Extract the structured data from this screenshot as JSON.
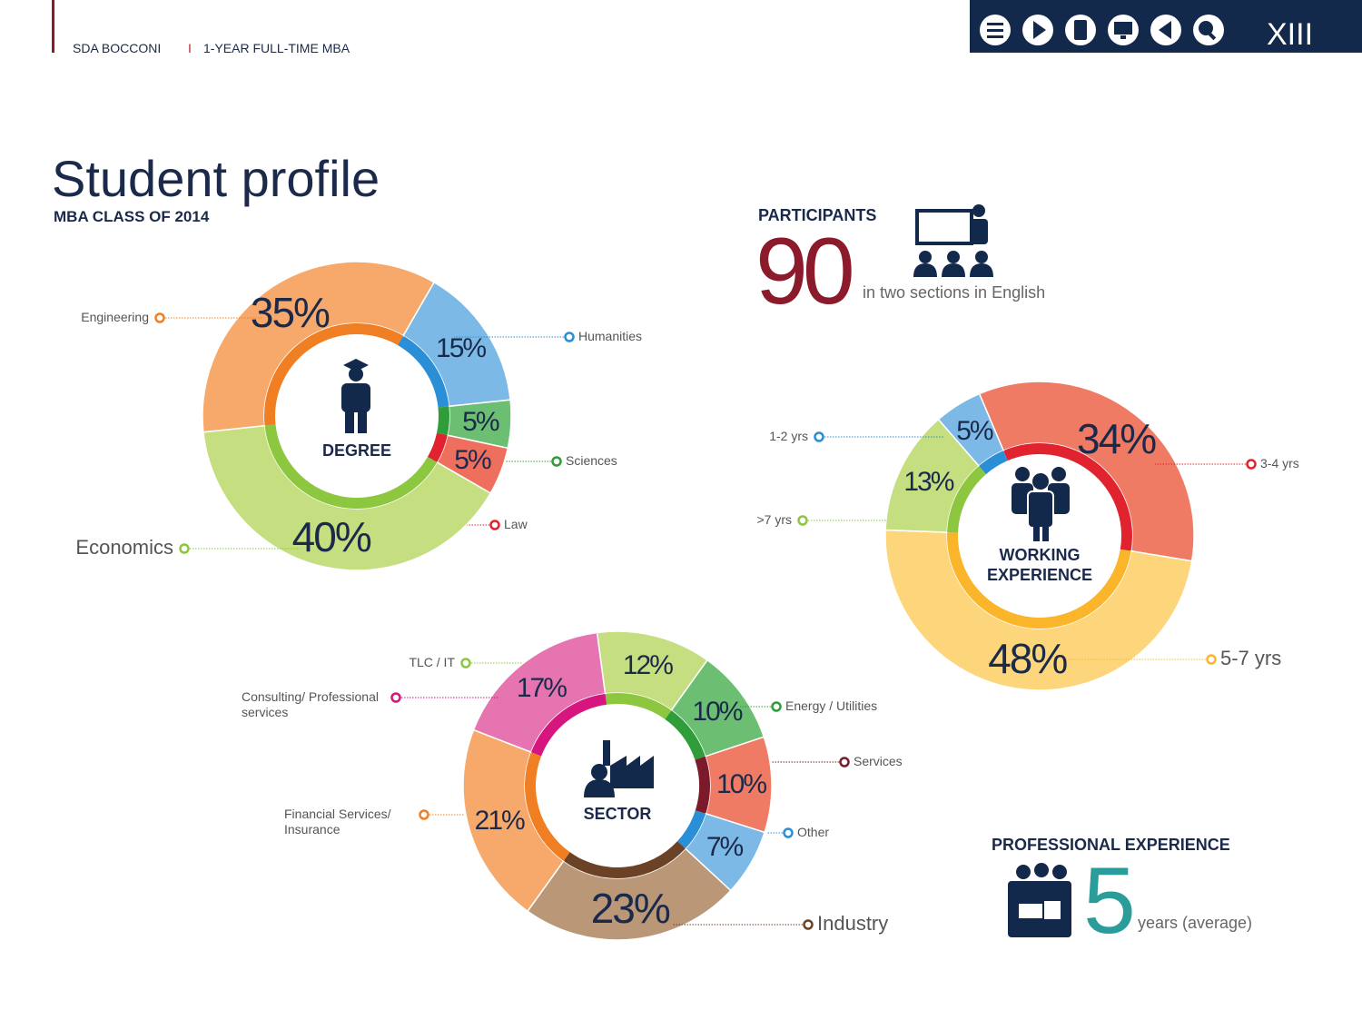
{
  "header": {
    "brand": "SDA BOCCONI",
    "separator": "I",
    "program": "1-YEAR FULL-TIME MBA",
    "page": "XIII"
  },
  "title": "Student profile",
  "subtitle": "MBA CLASS OF 2014",
  "participants": {
    "label": "PARTICIPANTS",
    "number": 90,
    "note": "in two sections in English"
  },
  "professional_experience": {
    "label": "PROFESSIONAL EXPERIENCE",
    "number": 5,
    "note": "years (average)"
  },
  "chart_data": [
    {
      "type": "donut",
      "title": "DEGREE",
      "categories": [
        "Humanities",
        "Sciences",
        "Law",
        "Economics",
        "Engineering"
      ],
      "values": [
        15,
        5,
        5,
        40,
        35
      ],
      "value_labels": [
        "15%",
        "5%",
        "5%",
        "40%",
        "35%"
      ],
      "colors": [
        "#7db9e6",
        "#6cbf72",
        "#ef6f5e",
        "#c4de80",
        "#f6a96b"
      ],
      "inner_colors": [
        "#2a8fd6",
        "#2f9e3a",
        "#e0232f",
        "#8dc63f",
        "#f07f23"
      ]
    },
    {
      "type": "donut",
      "title": "WORKING EXPERIENCE",
      "categories": [
        "3-4 yrs",
        "5-7 yrs",
        ">7 yrs",
        "1-2 yrs"
      ],
      "values": [
        34,
        48,
        13,
        5
      ],
      "value_labels": [
        "34%",
        "48%",
        "13%",
        "5%"
      ],
      "colors": [
        "#ef7b64",
        "#fdd67b",
        "#c4de80",
        "#7db9e6"
      ],
      "inner_colors": [
        "#e0232f",
        "#fbb52b",
        "#8dc63f",
        "#2a8fd6"
      ]
    },
    {
      "type": "donut",
      "title": "SECTOR",
      "categories": [
        "TLC / IT",
        "Energy / Utilities",
        "Services",
        "Other",
        "Industry",
        "Financial Services/ Insurance",
        "Consulting/ Professional services"
      ],
      "values": [
        12,
        10,
        10,
        7,
        23,
        21,
        17
      ],
      "value_labels": [
        "12%",
        "10%",
        "10%",
        "7%",
        "23%",
        "21%",
        "17%"
      ],
      "colors": [
        "#c4de80",
        "#6cbf72",
        "#ef7b64",
        "#7db9e6",
        "#b99777",
        "#f6a96b",
        "#e574b1"
      ],
      "inner_colors": [
        "#8dc63f",
        "#2f9e3a",
        "#7a1a2a",
        "#2a8fd6",
        "#6b4226",
        "#f07f23",
        "#d6157e"
      ]
    }
  ]
}
